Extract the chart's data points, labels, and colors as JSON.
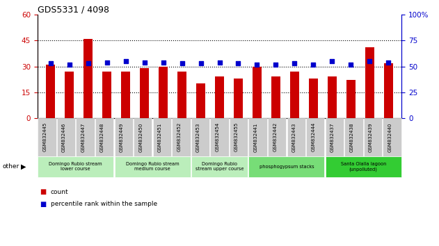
{
  "title": "GDS5331 / 4098",
  "samples": [
    "GSM832445",
    "GSM832446",
    "GSM832447",
    "GSM832448",
    "GSM832449",
    "GSM832450",
    "GSM832451",
    "GSM832452",
    "GSM832453",
    "GSM832454",
    "GSM832455",
    "GSM832441",
    "GSM832442",
    "GSM832443",
    "GSM832444",
    "GSM832437",
    "GSM832438",
    "GSM832439",
    "GSM832440"
  ],
  "counts": [
    31,
    27,
    46,
    27,
    27,
    29,
    30,
    27,
    20,
    24,
    23,
    30,
    24,
    27,
    23,
    24,
    22,
    41,
    32
  ],
  "percentile_ranks": [
    53,
    52,
    53,
    54,
    55,
    54,
    54,
    53,
    53,
    54,
    53,
    52,
    52,
    53,
    52,
    55,
    52,
    55,
    54
  ],
  "ylim_left": [
    0,
    60
  ],
  "ylim_right": [
    0,
    100
  ],
  "yticks_left": [
    0,
    15,
    30,
    45,
    60
  ],
  "yticks_right": [
    0,
    25,
    50,
    75,
    100
  ],
  "bar_color": "#cc0000",
  "dot_color": "#0000cc",
  "groups": [
    {
      "label": "Domingo Rubio stream\nlower course",
      "start": 0,
      "end": 3,
      "color": "#bbeebb"
    },
    {
      "label": "Domingo Rubio stream\nmedium course",
      "start": 4,
      "end": 7,
      "color": "#bbeebb"
    },
    {
      "label": "Domingo Rubio\nstream upper course",
      "start": 8,
      "end": 10,
      "color": "#bbeebb"
    },
    {
      "label": "phosphogypsum stacks",
      "start": 11,
      "end": 14,
      "color": "#77dd77"
    },
    {
      "label": "Santa Olalla lagoon\n(unpolluted)",
      "start": 15,
      "end": 18,
      "color": "#33cc33"
    }
  ],
  "tick_bg_color": "#cccccc",
  "bar_width": 0.5,
  "xlim": [
    -0.7,
    18.7
  ]
}
